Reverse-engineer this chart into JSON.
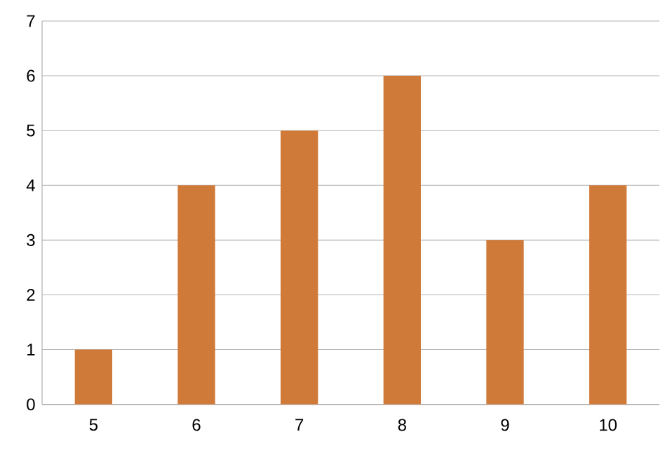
{
  "chart_data": {
    "type": "bar",
    "categories": [
      "5",
      "6",
      "7",
      "8",
      "9",
      "10"
    ],
    "values": [
      1,
      4,
      5,
      6,
      3,
      4
    ],
    "color": "#d07a3a",
    "ylim": [
      0,
      7
    ],
    "yticks": [
      0,
      1,
      2,
      3,
      4,
      5,
      6,
      7
    ],
    "grid": "y"
  }
}
